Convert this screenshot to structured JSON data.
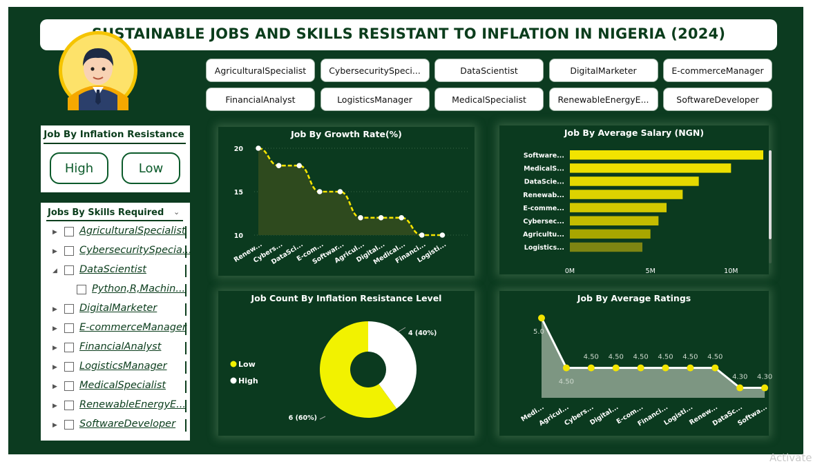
{
  "title": "SUSTAINABLE JOBS AND SKILLS RESISTANT TO INFLATION IN NIGERIA (2024)",
  "job_buttons": [
    "AgriculturalSpecialist",
    "CybersecuritySpeci...",
    "DataScientist",
    "DigitalMarketer",
    "E-commerceManager",
    "FinancialAnalyst",
    "LogisticsManager",
    "MedicalSpecialist",
    "RenewableEnergyE...",
    "SoftwareDeveloper"
  ],
  "inflation_slicer": {
    "title": "Job By Inflation Resistance",
    "options": [
      "High",
      "Low"
    ]
  },
  "skills_tree": {
    "title": "Jobs By Skills Required",
    "items": [
      {
        "label": "AgriculturalSpecialist",
        "expanded": false,
        "level": 0
      },
      {
        "label": "CybersecuritySpecia...",
        "expanded": false,
        "level": 0
      },
      {
        "label": "DataScientist",
        "expanded": true,
        "level": 0
      },
      {
        "label": "Python,R,Machin...",
        "expanded": false,
        "level": 1
      },
      {
        "label": "DigitalMarketer",
        "expanded": false,
        "level": 0
      },
      {
        "label": "E-commerceManager",
        "expanded": false,
        "level": 0
      },
      {
        "label": "FinancialAnalyst",
        "expanded": false,
        "level": 0
      },
      {
        "label": "LogisticsManager",
        "expanded": false,
        "level": 0
      },
      {
        "label": "MedicalSpecialist",
        "expanded": false,
        "level": 0
      },
      {
        "label": "RenewableEnergyE...",
        "expanded": false,
        "level": 0
      },
      {
        "label": "SoftwareDeveloper",
        "expanded": false,
        "level": 0
      }
    ]
  },
  "chart_data": [
    {
      "id": "growth",
      "type": "area",
      "title": "Job By Growth Rate(%)",
      "categories": [
        "Renew...",
        "Cybers...",
        "DataSci...",
        "E-com...",
        "Softwar...",
        "Agricul...",
        "Digital...",
        "Medical...",
        "Financi...",
        "Logisti..."
      ],
      "values": [
        20,
        18,
        18,
        15,
        15,
        12,
        12,
        12,
        10,
        10
      ],
      "yticks": [
        10,
        15,
        20
      ],
      "ylim": [
        10,
        20
      ],
      "colors": {
        "line": "#f5e400",
        "fill": "#2e4a1e",
        "marker": "#ffffff"
      }
    },
    {
      "id": "salary",
      "type": "bar",
      "orientation": "horizontal",
      "title": "Job By Average Salary (NGN)",
      "categories": [
        "Software...",
        "MedicalS...",
        "DataScie...",
        "Renewab...",
        "E-comme...",
        "Cybersec...",
        "Agricultu...",
        "Logistics..."
      ],
      "values": [
        12000000,
        10000000,
        8000000,
        7000000,
        6000000,
        5500000,
        5000000,
        4500000
      ],
      "xticks": [
        "0M",
        "5M",
        "10M"
      ],
      "xtick_values": [
        0,
        5000000,
        10000000
      ],
      "xlim": [
        0,
        12000000
      ],
      "colors": [
        "#f2e400",
        "#ecdf00",
        "#e5d900",
        "#ddd200",
        "#d2c800",
        "#c4bc00",
        "#a8a600",
        "#7e8512"
      ]
    },
    {
      "id": "resistance",
      "type": "pie",
      "title": "Job Count By Inflation Resistance Level",
      "slices": [
        {
          "name": "Low",
          "value": 6,
          "label": "6 (60%)",
          "color": "#f2f200"
        },
        {
          "name": "High",
          "value": 4,
          "label": "4 (40%)",
          "color": "#ffffff"
        }
      ],
      "legend": "left"
    },
    {
      "id": "ratings",
      "type": "area",
      "title": "Job By Average Ratings",
      "categories": [
        "Medi...",
        "Agricul...",
        "Cybers...",
        "Digital...",
        "E-com...",
        "Financi...",
        "Logisti...",
        "Renew...",
        "DataSc...",
        "Softwa..."
      ],
      "values": [
        5.0,
        4.5,
        4.5,
        4.5,
        4.5,
        4.5,
        4.5,
        4.5,
        4.3,
        4.3
      ],
      "labels": [
        "5.0",
        "4.50",
        "4.50",
        "4.50",
        "4.50",
        "4.50",
        "4.50",
        "4.50",
        "4.30",
        "4.30"
      ],
      "ylim": [
        4.2,
        5.05
      ],
      "colors": {
        "line": "#ffffff",
        "fill": "#7d9682",
        "marker": "#f2e400"
      }
    }
  ],
  "watermark": "Activate"
}
